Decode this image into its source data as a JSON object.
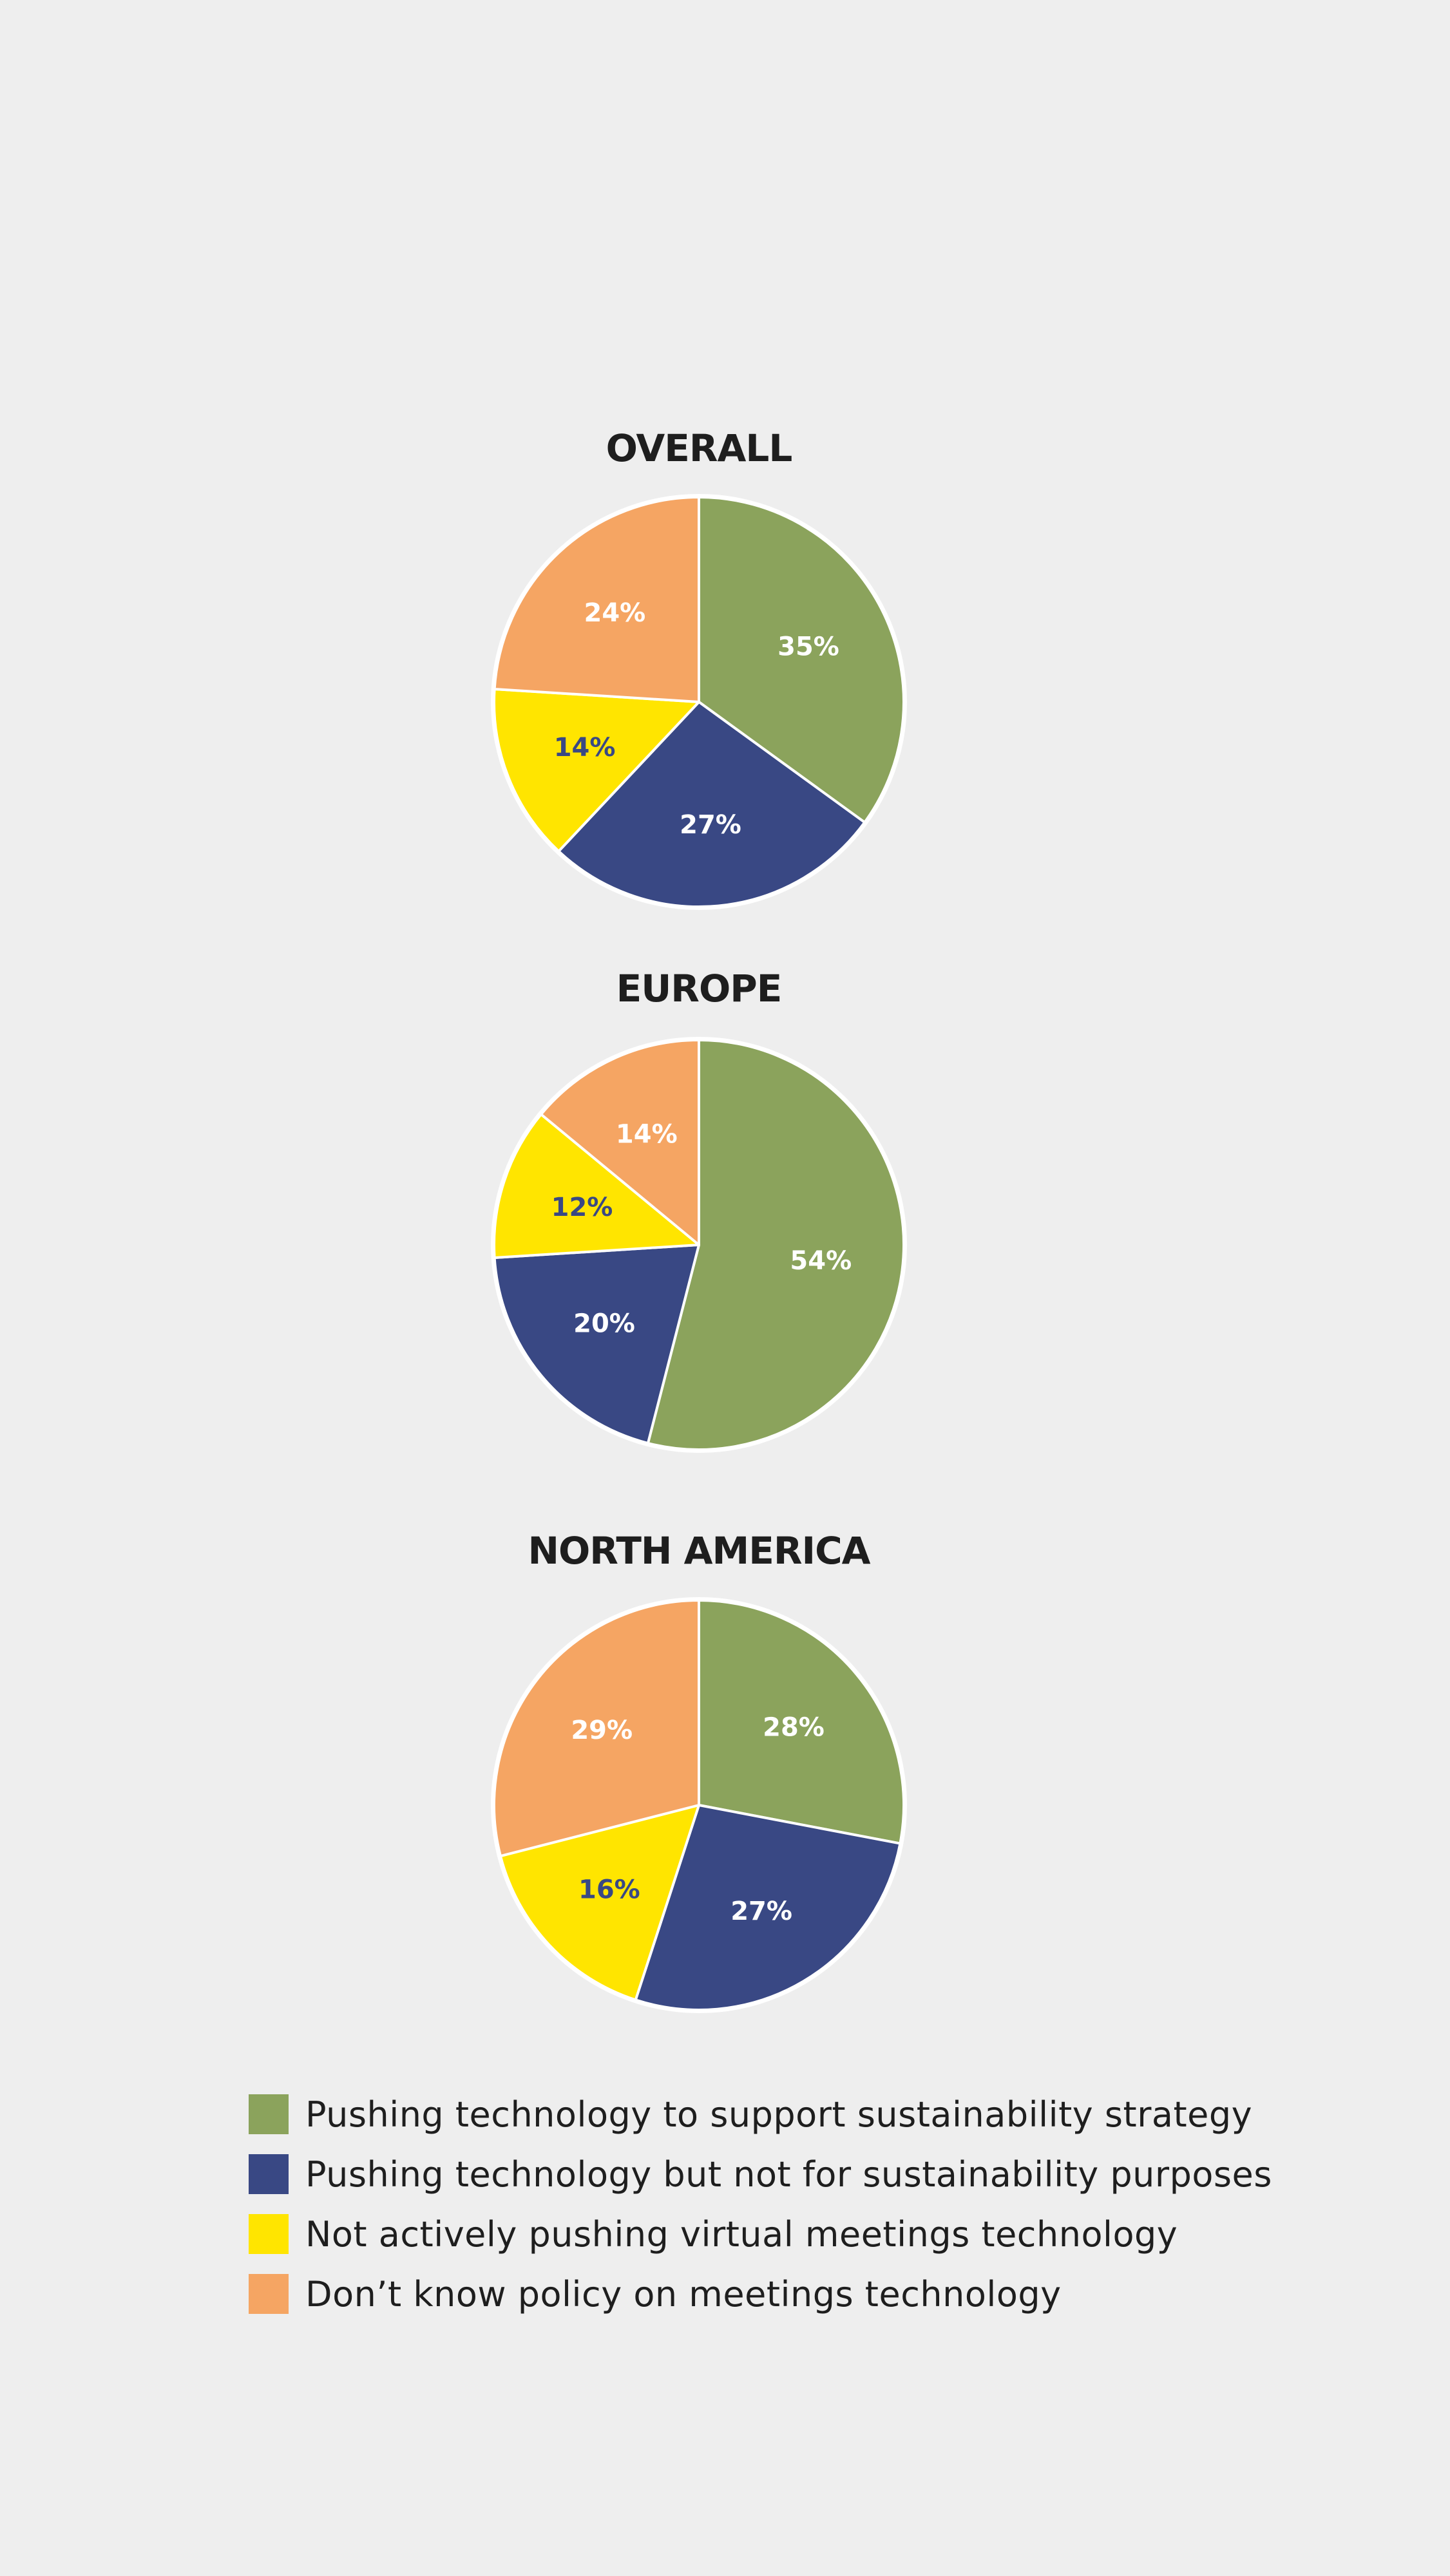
{
  "chart_data": [
    {
      "type": "pie",
      "title": "OVERALL",
      "categories": [
        "Pushing technology to support sustainability strategy",
        "Pushing technology but not for sustainability purposes",
        "Not actively pushing virtual meetings technology",
        "Don’t know policy on meetings technology"
      ],
      "values": [
        35,
        27,
        14,
        24
      ],
      "labels": [
        "35%",
        "27%",
        "14%",
        "24%"
      ]
    },
    {
      "type": "pie",
      "title": "EUROPE",
      "categories": [
        "Pushing technology to support sustainability strategy",
        "Pushing technology but not for sustainability purposes",
        "Not actively pushing virtual meetings technology",
        "Don’t know policy on meetings technology"
      ],
      "values": [
        54,
        20,
        12,
        14
      ],
      "labels": [
        "54%",
        "20%",
        "12%",
        "14%"
      ]
    },
    {
      "type": "pie",
      "title": "NORTH AMERICA",
      "categories": [
        "Pushing technology to support sustainability strategy",
        "Pushing technology but not for sustainability purposes",
        "Not actively pushing virtual meetings technology",
        "Don’t know policy on meetings technology"
      ],
      "values": [
        28,
        27,
        16,
        29
      ],
      "labels": [
        "28%",
        "27%",
        "16%",
        "29%"
      ]
    }
  ],
  "legend": [
    {
      "label": "Pushing technology to support sustainability strategy",
      "color": "#8ba35c"
    },
    {
      "label": "Pushing technology but not for sustainability purposes",
      "color": "#394884"
    },
    {
      "label": "Not actively pushing virtual meetings technology",
      "color": "#ffe500"
    },
    {
      "label": "Don’t know policy on meetings technology",
      "color": "#f5a563"
    }
  ],
  "label_colors": [
    "#ffffff",
    "#ffffff",
    "#394884",
    "#ffffff"
  ]
}
